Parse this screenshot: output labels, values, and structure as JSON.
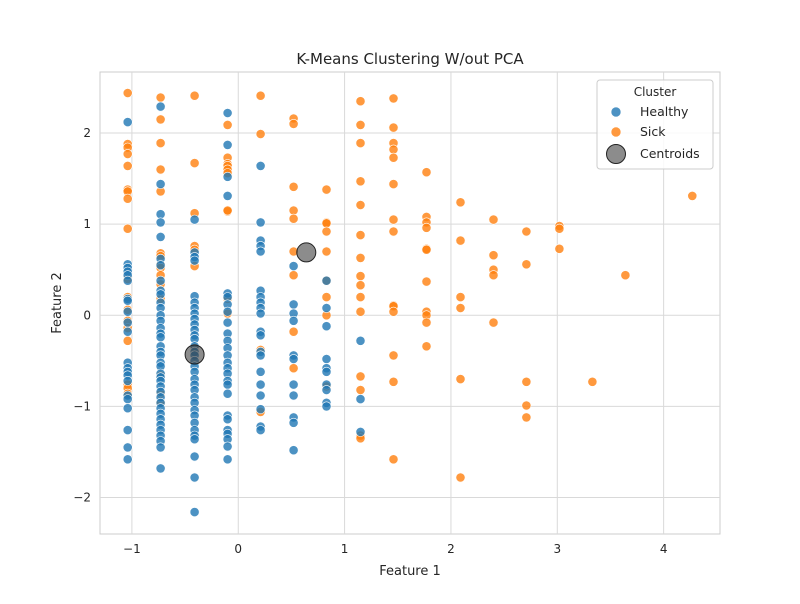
{
  "chart_data": {
    "type": "scatter",
    "title": "K-Means Clustering W/out PCA",
    "xlabel": "Feature 1",
    "ylabel": "Feature 2",
    "xlim": [
      -1.3,
      4.53
    ],
    "ylim": [
      -2.4,
      2.67
    ],
    "xticks": [
      -1,
      0,
      1,
      2,
      3,
      4
    ],
    "yticks": [
      -2,
      -1,
      0,
      1,
      2
    ],
    "xtick_labels": [
      "−1",
      "0",
      "1",
      "2",
      "3",
      "4"
    ],
    "ytick_labels": [
      "−2",
      "−1",
      "0",
      "1",
      "2"
    ],
    "grid": true,
    "legend": {
      "title": "Cluster",
      "position": "top-right",
      "entries": [
        "Healthy",
        "Sick",
        "Centroids"
      ]
    },
    "colors": {
      "Healthy": "#1f77b4",
      "Sick": "#ff7f0e",
      "Centroids": "#404040"
    },
    "series": [
      {
        "name": "Healthy",
        "points": [
          [
            -1.04,
            2.12
          ],
          [
            -1.04,
            0.56
          ],
          [
            -1.04,
            0.52
          ],
          [
            -1.04,
            0.48
          ],
          [
            -1.04,
            0.44
          ],
          [
            -1.04,
            0.38
          ],
          [
            -1.04,
            0.18
          ],
          [
            -1.04,
            0.16
          ],
          [
            -1.04,
            0.04
          ],
          [
            -1.04,
            -0.08
          ],
          [
            -1.04,
            -0.18
          ],
          [
            -1.04,
            -0.52
          ],
          [
            -1.04,
            -0.58
          ],
          [
            -1.04,
            -0.62
          ],
          [
            -1.04,
            -0.66
          ],
          [
            -1.04,
            -0.72
          ],
          [
            -1.04,
            -0.88
          ],
          [
            -1.04,
            -0.92
          ],
          [
            -1.04,
            -1.02
          ],
          [
            -1.04,
            -1.26
          ],
          [
            -1.04,
            -1.45
          ],
          [
            -1.04,
            -1.58
          ],
          [
            -0.73,
            2.29
          ],
          [
            -0.73,
            1.44
          ],
          [
            -0.73,
            1.11
          ],
          [
            -0.73,
            1.02
          ],
          [
            -0.73,
            0.86
          ],
          [
            -0.73,
            0.62
          ],
          [
            -0.73,
            0.55
          ],
          [
            -0.73,
            0.38
          ],
          [
            -0.73,
            0.27
          ],
          [
            -0.73,
            0.23
          ],
          [
            -0.73,
            0.14
          ],
          [
            -0.73,
            0.08
          ],
          [
            -0.73,
            0.0
          ],
          [
            -0.73,
            -0.06
          ],
          [
            -0.73,
            -0.14
          ],
          [
            -0.73,
            -0.2
          ],
          [
            -0.73,
            -0.24
          ],
          [
            -0.73,
            -0.34
          ],
          [
            -0.73,
            -0.4
          ],
          [
            -0.73,
            -0.44
          ],
          [
            -0.73,
            -0.52
          ],
          [
            -0.73,
            -0.56
          ],
          [
            -0.73,
            -0.64
          ],
          [
            -0.73,
            -0.68
          ],
          [
            -0.73,
            -0.72
          ],
          [
            -0.73,
            -0.78
          ],
          [
            -0.73,
            -0.84
          ],
          [
            -0.73,
            -0.9
          ],
          [
            -0.73,
            -0.96
          ],
          [
            -0.73,
            -1.02
          ],
          [
            -0.73,
            -1.08
          ],
          [
            -0.73,
            -1.14
          ],
          [
            -0.73,
            -1.2
          ],
          [
            -0.73,
            -1.26
          ],
          [
            -0.73,
            -1.32
          ],
          [
            -0.73,
            -1.38
          ],
          [
            -0.73,
            -1.45
          ],
          [
            -0.73,
            -1.68
          ],
          [
            -0.41,
            1.05
          ],
          [
            -0.41,
            0.69
          ],
          [
            -0.41,
            0.64
          ],
          [
            -0.41,
            0.6
          ],
          [
            -0.41,
            0.21
          ],
          [
            -0.41,
            0.14
          ],
          [
            -0.41,
            0.08
          ],
          [
            -0.41,
            0.02
          ],
          [
            -0.41,
            -0.04
          ],
          [
            -0.41,
            -0.1
          ],
          [
            -0.41,
            -0.16
          ],
          [
            -0.41,
            -0.22
          ],
          [
            -0.41,
            -0.26
          ],
          [
            -0.41,
            -0.34
          ],
          [
            -0.41,
            -0.4
          ],
          [
            -0.41,
            -0.44
          ],
          [
            -0.41,
            -0.5
          ],
          [
            -0.41,
            -0.56
          ],
          [
            -0.41,
            -0.62
          ],
          [
            -0.41,
            -0.7
          ],
          [
            -0.41,
            -0.76
          ],
          [
            -0.41,
            -0.82
          ],
          [
            -0.41,
            -0.9
          ],
          [
            -0.41,
            -0.96
          ],
          [
            -0.41,
            -1.04
          ],
          [
            -0.41,
            -1.1
          ],
          [
            -0.41,
            -1.18
          ],
          [
            -0.41,
            -1.26
          ],
          [
            -0.41,
            -1.32
          ],
          [
            -0.41,
            -1.36
          ],
          [
            -0.41,
            -1.55
          ],
          [
            -0.41,
            -1.78
          ],
          [
            -0.41,
            -2.16
          ],
          [
            -0.1,
            2.22
          ],
          [
            -0.1,
            1.87
          ],
          [
            -0.1,
            1.52
          ],
          [
            -0.1,
            1.31
          ],
          [
            -0.1,
            0.24
          ],
          [
            -0.1,
            0.2
          ],
          [
            -0.1,
            0.12
          ],
          [
            -0.1,
            0.04
          ],
          [
            -0.1,
            -0.08
          ],
          [
            -0.1,
            -0.2
          ],
          [
            -0.1,
            -0.28
          ],
          [
            -0.1,
            -0.36
          ],
          [
            -0.1,
            -0.44
          ],
          [
            -0.1,
            -0.52
          ],
          [
            -0.1,
            -0.58
          ],
          [
            -0.1,
            -0.64
          ],
          [
            -0.1,
            -0.72
          ],
          [
            -0.1,
            -0.76
          ],
          [
            -0.1,
            -0.86
          ],
          [
            -0.1,
            -1.1
          ],
          [
            -0.1,
            -1.14
          ],
          [
            -0.1,
            -1.26
          ],
          [
            -0.1,
            -1.3
          ],
          [
            -0.1,
            -1.36
          ],
          [
            -0.1,
            -1.44
          ],
          [
            -0.1,
            -1.58
          ],
          [
            0.21,
            1.64
          ],
          [
            0.21,
            1.02
          ],
          [
            0.21,
            0.82
          ],
          [
            0.21,
            0.76
          ],
          [
            0.21,
            0.7
          ],
          [
            0.21,
            0.27
          ],
          [
            0.21,
            0.2
          ],
          [
            0.21,
            0.14
          ],
          [
            0.21,
            0.08
          ],
          [
            0.21,
            0.02
          ],
          [
            0.21,
            -0.18
          ],
          [
            0.21,
            -0.22
          ],
          [
            0.21,
            -0.4
          ],
          [
            0.21,
            -0.44
          ],
          [
            0.21,
            -0.62
          ],
          [
            0.21,
            -0.76
          ],
          [
            0.21,
            -0.88
          ],
          [
            0.21,
            -1.03
          ],
          [
            0.21,
            -1.22
          ],
          [
            0.21,
            -1.26
          ],
          [
            0.52,
            0.54
          ],
          [
            0.52,
            0.12
          ],
          [
            0.52,
            0.02
          ],
          [
            0.52,
            -0.06
          ],
          [
            0.52,
            -0.44
          ],
          [
            0.52,
            -0.48
          ],
          [
            0.52,
            -0.76
          ],
          [
            0.52,
            -0.88
          ],
          [
            0.52,
            -1.12
          ],
          [
            0.52,
            -1.18
          ],
          [
            0.52,
            -1.48
          ],
          [
            0.83,
            0.38
          ],
          [
            0.83,
            0.08
          ],
          [
            0.83,
            -0.12
          ],
          [
            0.83,
            -0.48
          ],
          [
            0.83,
            -0.58
          ],
          [
            0.83,
            -0.62
          ],
          [
            0.83,
            -0.76
          ],
          [
            0.83,
            -0.82
          ],
          [
            0.83,
            -0.96
          ],
          [
            0.83,
            -1.0
          ],
          [
            1.15,
            -0.28
          ],
          [
            1.15,
            -0.92
          ],
          [
            1.15,
            -1.28
          ]
        ]
      },
      {
        "name": "Sick",
        "points": [
          [
            -1.04,
            2.44
          ],
          [
            -1.04,
            1.88
          ],
          [
            -1.04,
            1.84
          ],
          [
            -1.04,
            1.77
          ],
          [
            -1.04,
            1.64
          ],
          [
            -1.04,
            1.38
          ],
          [
            -1.04,
            1.36
          ],
          [
            -1.04,
            1.28
          ],
          [
            -1.04,
            0.95
          ],
          [
            -1.04,
            0.4
          ],
          [
            -1.04,
            0.2
          ],
          [
            -1.04,
            0.06
          ],
          [
            -1.04,
            -0.06
          ],
          [
            -1.04,
            -0.14
          ],
          [
            -1.04,
            -0.28
          ],
          [
            -1.04,
            -0.76
          ],
          [
            -1.04,
            -0.8
          ],
          [
            -1.04,
            -0.86
          ],
          [
            -0.73,
            2.39
          ],
          [
            -0.73,
            2.15
          ],
          [
            -0.73,
            1.89
          ],
          [
            -0.73,
            1.6
          ],
          [
            -0.73,
            1.36
          ],
          [
            -0.73,
            0.68
          ],
          [
            -0.73,
            0.65
          ],
          [
            -0.73,
            0.56
          ],
          [
            -0.73,
            0.52
          ],
          [
            -0.73,
            0.44
          ],
          [
            -0.73,
            0.34
          ],
          [
            -0.73,
            0.18
          ],
          [
            -0.73,
            -0.66
          ],
          [
            -0.73,
            -0.86
          ],
          [
            -0.73,
            -0.96
          ],
          [
            -0.41,
            2.41
          ],
          [
            -0.41,
            1.67
          ],
          [
            -0.41,
            1.12
          ],
          [
            -0.41,
            0.76
          ],
          [
            -0.41,
            0.72
          ],
          [
            -0.41,
            0.54
          ],
          [
            -0.41,
            -0.36
          ],
          [
            -0.1,
            2.09
          ],
          [
            -0.1,
            1.73
          ],
          [
            -0.1,
            1.66
          ],
          [
            -0.1,
            1.64
          ],
          [
            -0.1,
            1.6
          ],
          [
            -0.1,
            1.56
          ],
          [
            -0.1,
            1.14
          ],
          [
            -0.1,
            1.15
          ],
          [
            -0.1,
            0.18
          ],
          [
            -0.1,
            0.02
          ],
          [
            0.21,
            2.41
          ],
          [
            0.21,
            1.99
          ],
          [
            0.21,
            -0.38
          ],
          [
            0.21,
            -1.06
          ],
          [
            0.52,
            2.16
          ],
          [
            0.52,
            2.1
          ],
          [
            0.52,
            1.41
          ],
          [
            0.52,
            1.15
          ],
          [
            0.52,
            1.06
          ],
          [
            0.52,
            0.7
          ],
          [
            0.52,
            0.44
          ],
          [
            0.52,
            -0.18
          ],
          [
            0.52,
            -0.58
          ],
          [
            0.83,
            1.38
          ],
          [
            0.83,
            1.02
          ],
          [
            0.83,
            1.01
          ],
          [
            0.83,
            0.92
          ],
          [
            0.83,
            0.7
          ],
          [
            0.83,
            0.38
          ],
          [
            0.83,
            0.2
          ],
          [
            0.83,
            0.0
          ],
          [
            0.83,
            -0.78
          ],
          [
            1.15,
            2.35
          ],
          [
            1.15,
            2.09
          ],
          [
            1.15,
            1.89
          ],
          [
            1.15,
            1.47
          ],
          [
            1.15,
            1.21
          ],
          [
            1.15,
            0.88
          ],
          [
            1.15,
            0.63
          ],
          [
            1.15,
            0.43
          ],
          [
            1.15,
            0.33
          ],
          [
            1.15,
            0.2
          ],
          [
            1.15,
            0.04
          ],
          [
            1.15,
            -0.67
          ],
          [
            1.15,
            -0.82
          ],
          [
            1.15,
            -1.32
          ],
          [
            1.15,
            -1.35
          ],
          [
            1.46,
            2.38
          ],
          [
            1.46,
            2.06
          ],
          [
            1.46,
            1.89
          ],
          [
            1.46,
            1.82
          ],
          [
            1.46,
            1.73
          ],
          [
            1.46,
            1.44
          ],
          [
            1.46,
            1.05
          ],
          [
            1.46,
            0.92
          ],
          [
            1.46,
            0.11
          ],
          [
            1.46,
            0.1
          ],
          [
            1.46,
            0.04
          ],
          [
            1.46,
            -0.44
          ],
          [
            1.46,
            -0.73
          ],
          [
            1.46,
            -1.58
          ],
          [
            1.77,
            1.57
          ],
          [
            1.77,
            1.08
          ],
          [
            1.77,
            1.02
          ],
          [
            1.77,
            0.96
          ],
          [
            1.77,
            0.73
          ],
          [
            1.77,
            0.72
          ],
          [
            1.77,
            0.37
          ],
          [
            1.77,
            0.04
          ],
          [
            1.77,
            0.0
          ],
          [
            1.77,
            -0.08
          ],
          [
            1.77,
            -0.34
          ],
          [
            2.09,
            1.24
          ],
          [
            2.09,
            0.82
          ],
          [
            2.09,
            0.2
          ],
          [
            2.09,
            0.08
          ],
          [
            2.09,
            -0.7
          ],
          [
            2.09,
            -1.78
          ],
          [
            2.4,
            1.05
          ],
          [
            2.4,
            0.66
          ],
          [
            2.4,
            0.5
          ],
          [
            2.4,
            0.44
          ],
          [
            2.4,
            -0.08
          ],
          [
            2.71,
            0.92
          ],
          [
            2.71,
            0.56
          ],
          [
            2.71,
            -0.73
          ],
          [
            2.71,
            -0.99
          ],
          [
            2.71,
            -1.12
          ],
          [
            3.02,
            0.98
          ],
          [
            3.02,
            0.95
          ],
          [
            3.02,
            0.73
          ],
          [
            3.33,
            -0.73
          ],
          [
            3.64,
            0.44
          ],
          [
            4.27,
            1.31
          ]
        ]
      },
      {
        "name": "Centroids",
        "points": [
          [
            -0.41,
            -0.43
          ],
          [
            0.64,
            0.69
          ]
        ]
      }
    ]
  }
}
